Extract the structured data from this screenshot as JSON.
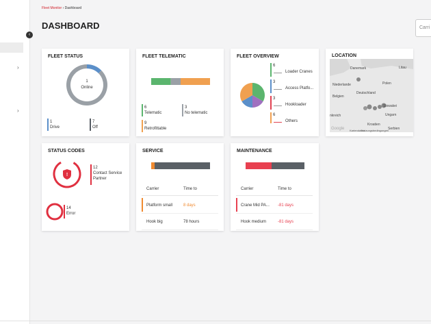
{
  "breadcrumb": {
    "root": "Fleet Monitor",
    "separator": "›",
    "current": "Dashboard"
  },
  "title": "DASHBOARD",
  "search_placeholder": "Carri",
  "fleet_status": {
    "title": "FLEET STATUS",
    "center_value": 1,
    "center_label": "Online",
    "items": [
      {
        "value": 1,
        "label": "Drive",
        "color": "#5b8fc9"
      },
      {
        "value": 7,
        "label": "Off",
        "color": "#555c63"
      }
    ]
  },
  "fleet_telematic": {
    "title": "FLEET TELEMATIC",
    "items": [
      {
        "value": 6,
        "label": "Telematic",
        "color": "#5bb56e"
      },
      {
        "value": 3,
        "label": "No telematic",
        "color": "#9aa0a6"
      },
      {
        "value": 9,
        "label": "Retrofittable",
        "color": "#f0a050"
      }
    ]
  },
  "fleet_overview": {
    "title": "FLEET OVERVIEW",
    "items": [
      {
        "value": 6,
        "label": "Loader Cranes",
        "color": "#5bb56e"
      },
      {
        "value": 3,
        "label": "Access Platfo...",
        "color": "#5b8fc9"
      },
      {
        "value": 3,
        "label": "Hookloader",
        "color": "#e04050"
      },
      {
        "value": 6,
        "label": "Others",
        "color": "#f0a050"
      }
    ],
    "pie_colors": [
      "#5bb56e",
      "#a070c0",
      "#5b8fc9",
      "#f0a050"
    ]
  },
  "location": {
    "title": "LOCATION",
    "labels": [
      "Danemark",
      "Litau",
      "Niederlande",
      "Polen",
      "Belgien",
      "Deutschland",
      "Slowakei",
      "Ungarn",
      "nkreich",
      "Kroatien",
      "Serbien"
    ],
    "attribution": [
      "Google",
      "Kartendaten",
      "Nutzungsbedingungen"
    ]
  },
  "status_codes": {
    "title": "STATUS CODES",
    "items": [
      {
        "value": 12,
        "label": "Contact Service Partner"
      },
      {
        "value": 14,
        "label": "Error"
      }
    ]
  },
  "service": {
    "title": "SERVICE",
    "columns": [
      "Carrier",
      "Time to"
    ],
    "rows": [
      [
        "Platform small",
        "8 days"
      ],
      [
        "Hook big",
        "78 hours"
      ]
    ]
  },
  "maintenance": {
    "title": "MAINTENANCE",
    "columns": [
      "Carrier",
      "Time to"
    ],
    "rows": [
      [
        "Crane Mid PA...",
        "-81 days"
      ],
      [
        "Hook medium",
        "-81 days"
      ]
    ]
  }
}
